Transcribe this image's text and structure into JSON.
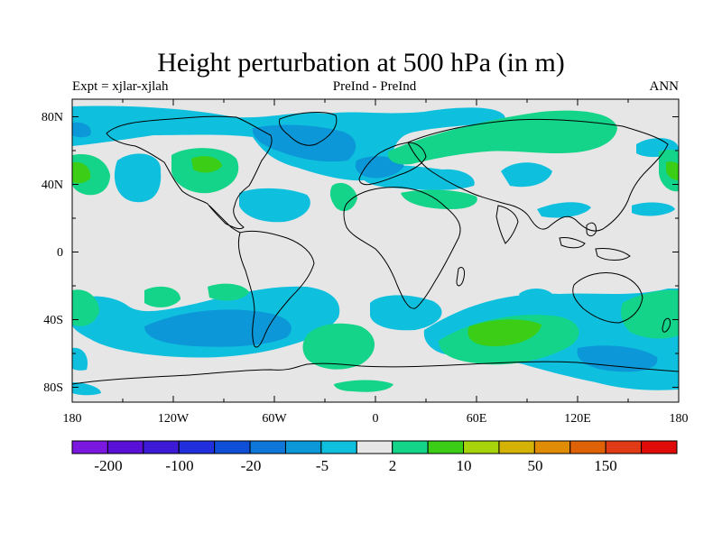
{
  "title": "Height perturbation at 500 hPa (in m)",
  "subtitle_left": "Expt = xjlar-xjlah",
  "subtitle_center": "PreInd - PreInd",
  "subtitle_right": "ANN",
  "map": {
    "lat_ticks": [
      "80N",
      "40N",
      "0",
      "40S",
      "80S"
    ],
    "lon_ticks": [
      "180",
      "120W",
      "60W",
      "0",
      "60E",
      "120E",
      "180"
    ],
    "background_color": "#e6e6e6"
  },
  "colorbar": {
    "colors": [
      "#7b18e0",
      "#5a0fd6",
      "#3c1ad6",
      "#1f30dc",
      "#0f4fd8",
      "#0f77da",
      "#0c98d8",
      "#0fc0de",
      "#e6e6e6",
      "#13d488",
      "#3ccd16",
      "#a6d30a",
      "#d4b206",
      "#e08c06",
      "#e06206",
      "#e03a16",
      "#e00a06"
    ],
    "labels": [
      "-200",
      "-100",
      "-20",
      "-5",
      "2",
      "10",
      "50",
      "150"
    ]
  }
}
